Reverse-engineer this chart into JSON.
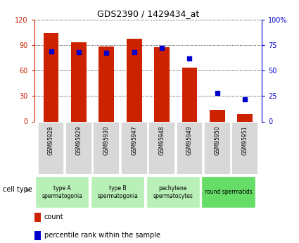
{
  "title": "GDS2390 / 1429434_at",
  "samples": [
    "GSM95928",
    "GSM95929",
    "GSM95930",
    "GSM95947",
    "GSM95948",
    "GSM95949",
    "GSM95950",
    "GSM95951"
  ],
  "counts": [
    104,
    93,
    88,
    97,
    87,
    63,
    14,
    9
  ],
  "percentile_ranks": [
    69,
    68,
    67,
    68,
    72,
    62,
    28,
    22
  ],
  "cell_types": [
    {
      "label": "type A\nspermatogonia",
      "span": [
        0,
        2
      ],
      "color": "#b8f0b8"
    },
    {
      "label": "type B\nspermatogonia",
      "span": [
        2,
        4
      ],
      "color": "#b8f0b8"
    },
    {
      "label": "pachytene\nspermatocytes",
      "span": [
        4,
        6
      ],
      "color": "#b8f0b8"
    },
    {
      "label": "round spermatids",
      "span": [
        6,
        8
      ],
      "color": "#66dd66"
    }
  ],
  "bar_color": "#cc2200",
  "dot_color": "#0000cc",
  "left_ylim": [
    0,
    120
  ],
  "right_ylim": [
    0,
    100
  ],
  "left_yticks": [
    0,
    30,
    60,
    90,
    120
  ],
  "right_yticks": [
    0,
    25,
    50,
    75,
    100
  ],
  "right_yticklabels": [
    "0",
    "25",
    "50",
    "75",
    "100%"
  ],
  "gsm_bg_color": "#d8d8d8",
  "plot_bg": "#ffffff",
  "left_axis_color": "#cc2200",
  "right_axis_color": "#0000cc"
}
